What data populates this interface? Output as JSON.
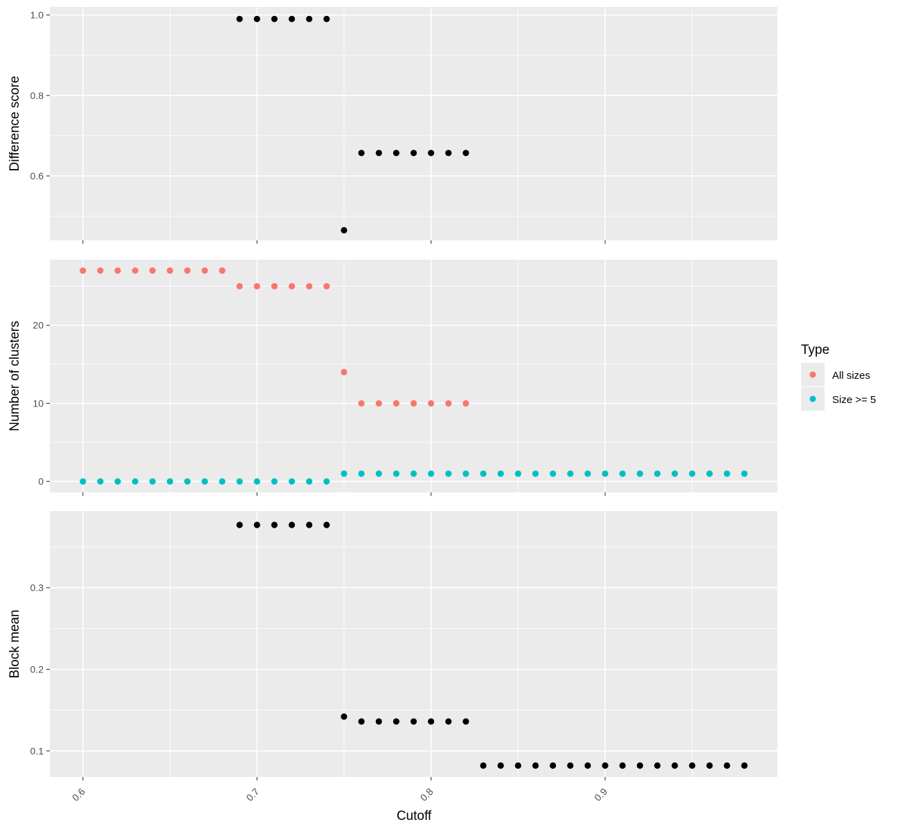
{
  "chart_data": {
    "type": "scatter",
    "x_label": "Cutoff",
    "x_range": [
      0.581,
      0.999
    ],
    "x_ticks": [
      0.6,
      0.7,
      0.8,
      0.9
    ],
    "x_tick_labels": [
      "0.6",
      "0.7",
      "0.8",
      "0.9"
    ],
    "x_tick_label_rotation": "45-degree",
    "grid": true,
    "legend": {
      "title": "Type",
      "placement": "right",
      "entries": [
        {
          "label": "All sizes",
          "color": "#F8766D"
        },
        {
          "label": "Size >= 5",
          "color": "#00BFC4"
        }
      ]
    },
    "panels": [
      {
        "name": "difference-score",
        "y_label": "Difference score",
        "y_range": [
          0.44,
          1.02
        ],
        "y_ticks": [
          0.6,
          0.8,
          1.0
        ],
        "y_tick_labels": [
          "0.6",
          "0.8",
          "1.0"
        ],
        "series": [
          {
            "color": "#000000",
            "points": [
              [
                0.69,
                0.99
              ],
              [
                0.7,
                0.99
              ],
              [
                0.71,
                0.99
              ],
              [
                0.72,
                0.99
              ],
              [
                0.73,
                0.99
              ],
              [
                0.74,
                0.99
              ],
              [
                0.75,
                0.465
              ],
              [
                0.76,
                0.657
              ],
              [
                0.77,
                0.657
              ],
              [
                0.78,
                0.657
              ],
              [
                0.79,
                0.657
              ],
              [
                0.8,
                0.657
              ],
              [
                0.81,
                0.657
              ],
              [
                0.82,
                0.657
              ]
            ]
          }
        ]
      },
      {
        "name": "number-of-clusters",
        "y_label": "Number of clusters",
        "y_range": [
          -1.4,
          28.4
        ],
        "y_ticks": [
          0,
          10,
          20
        ],
        "y_tick_labels": [
          "0",
          "10",
          "20"
        ],
        "series": [
          {
            "name": "All sizes",
            "color": "#F8766D",
            "points": [
              [
                0.6,
                27
              ],
              [
                0.61,
                27
              ],
              [
                0.62,
                27
              ],
              [
                0.63,
                27
              ],
              [
                0.64,
                27
              ],
              [
                0.65,
                27
              ],
              [
                0.66,
                27
              ],
              [
                0.67,
                27
              ],
              [
                0.68,
                27
              ],
              [
                0.69,
                25
              ],
              [
                0.7,
                25
              ],
              [
                0.71,
                25
              ],
              [
                0.72,
                25
              ],
              [
                0.73,
                25
              ],
              [
                0.74,
                25
              ],
              [
                0.75,
                14
              ],
              [
                0.76,
                10
              ],
              [
                0.77,
                10
              ],
              [
                0.78,
                10
              ],
              [
                0.79,
                10
              ],
              [
                0.8,
                10
              ],
              [
                0.81,
                10
              ],
              [
                0.82,
                10
              ]
            ]
          },
          {
            "name": "Size >= 5",
            "color": "#00BFC4",
            "points": [
              [
                0.6,
                0
              ],
              [
                0.61,
                0
              ],
              [
                0.62,
                0
              ],
              [
                0.63,
                0
              ],
              [
                0.64,
                0
              ],
              [
                0.65,
                0
              ],
              [
                0.66,
                0
              ],
              [
                0.67,
                0
              ],
              [
                0.68,
                0
              ],
              [
                0.69,
                0
              ],
              [
                0.7,
                0
              ],
              [
                0.71,
                0
              ],
              [
                0.72,
                0
              ],
              [
                0.73,
                0
              ],
              [
                0.74,
                0
              ],
              [
                0.75,
                1
              ],
              [
                0.76,
                1
              ],
              [
                0.77,
                1
              ],
              [
                0.78,
                1
              ],
              [
                0.79,
                1
              ],
              [
                0.8,
                1
              ],
              [
                0.81,
                1
              ],
              [
                0.82,
                1
              ],
              [
                0.83,
                1
              ],
              [
                0.84,
                1
              ],
              [
                0.85,
                1
              ],
              [
                0.86,
                1
              ],
              [
                0.87,
                1
              ],
              [
                0.88,
                1
              ],
              [
                0.89,
                1
              ],
              [
                0.9,
                1
              ],
              [
                0.91,
                1
              ],
              [
                0.92,
                1
              ],
              [
                0.93,
                1
              ],
              [
                0.94,
                1
              ],
              [
                0.95,
                1
              ],
              [
                0.96,
                1
              ],
              [
                0.97,
                1
              ],
              [
                0.98,
                1
              ]
            ]
          }
        ]
      },
      {
        "name": "block-mean",
        "y_label": "Block mean",
        "y_range": [
          0.068,
          0.394
        ],
        "y_ticks": [
          0.1,
          0.2,
          0.3
        ],
        "y_tick_labels": [
          "0.1",
          "0.2",
          "0.3"
        ],
        "series": [
          {
            "color": "#000000",
            "points": [
              [
                0.69,
                0.377
              ],
              [
                0.7,
                0.377
              ],
              [
                0.71,
                0.377
              ],
              [
                0.72,
                0.377
              ],
              [
                0.73,
                0.377
              ],
              [
                0.74,
                0.377
              ],
              [
                0.75,
                0.142
              ],
              [
                0.76,
                0.136
              ],
              [
                0.77,
                0.136
              ],
              [
                0.78,
                0.136
              ],
              [
                0.79,
                0.136
              ],
              [
                0.8,
                0.136
              ],
              [
                0.81,
                0.136
              ],
              [
                0.82,
                0.136
              ],
              [
                0.83,
                0.082
              ],
              [
                0.84,
                0.082
              ],
              [
                0.85,
                0.082
              ],
              [
                0.86,
                0.082
              ],
              [
                0.87,
                0.082
              ],
              [
                0.88,
                0.082
              ],
              [
                0.89,
                0.082
              ],
              [
                0.9,
                0.082
              ],
              [
                0.91,
                0.082
              ],
              [
                0.92,
                0.082
              ],
              [
                0.93,
                0.082
              ],
              [
                0.94,
                0.082
              ],
              [
                0.95,
                0.082
              ],
              [
                0.96,
                0.082
              ],
              [
                0.97,
                0.082
              ],
              [
                0.98,
                0.082
              ]
            ]
          }
        ]
      }
    ]
  }
}
